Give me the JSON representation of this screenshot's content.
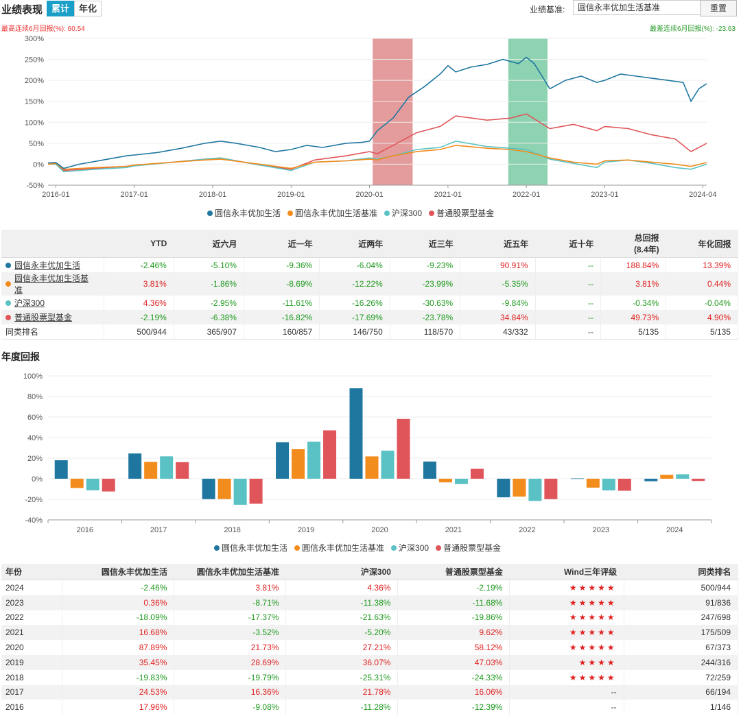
{
  "header": {
    "title": "业绩表现",
    "tab_cum": "累计",
    "tab_ann": "年化",
    "bench_label": "业绩基准:",
    "bench_value": "圆信永丰优加生活基准",
    "reset": "重置"
  },
  "extremes": {
    "max6m": "最高连续6月回报(%): 60.54",
    "min6m": "最差连续6月回报(%): -23.63"
  },
  "colors": {
    "fund": "#1f77a0",
    "bench": "#f28c1c",
    "hs300": "#5ac2c4",
    "peer": "#e0555a",
    "up": "#e02020",
    "down": "#1f9a1f",
    "shade_red": "#d97070",
    "shade_green": "#5cc090"
  },
  "chart_data": [
    {
      "type": "line",
      "title": "",
      "xlabel": "",
      "ylabel": "",
      "y_ticks": [
        "300%",
        "250%",
        "200%",
        "150%",
        "100%",
        "50%",
        "0%",
        "-50%"
      ],
      "x_ticks": [
        "2016-01",
        "2017-01",
        "2018-01",
        "2019-01",
        "2020-01",
        "2021-01",
        "2022-01",
        "2023-01",
        "2024-04"
      ],
      "ylim": [
        -50,
        300
      ],
      "xlim": [
        2015.9,
        2024.3
      ],
      "shaded": [
        {
          "from": 2020.04,
          "to": 2020.55,
          "color": "red"
        },
        {
          "from": 2021.77,
          "to": 2022.27,
          "color": "green"
        }
      ],
      "legend": [
        "圆信永丰优加生活",
        "圆信永丰优加生活基准",
        "沪深300",
        "普通股票型基金"
      ],
      "series": [
        {
          "name": "圆信永丰优加生活",
          "x": [
            2015.9,
            2016.0,
            2016.1,
            2016.3,
            2016.6,
            2016.9,
            2017.0,
            2017.3,
            2017.6,
            2017.9,
            2018.1,
            2018.3,
            2018.6,
            2018.8,
            2019.0,
            2019.2,
            2019.4,
            2019.7,
            2019.9,
            2020.0,
            2020.1,
            2020.3,
            2020.5,
            2020.7,
            2020.9,
            2021.0,
            2021.1,
            2021.3,
            2021.5,
            2021.7,
            2021.9,
            2022.0,
            2022.1,
            2022.2,
            2022.3,
            2022.5,
            2022.7,
            2022.9,
            2023.0,
            2023.2,
            2023.4,
            2023.6,
            2023.8,
            2024.0,
            2024.1,
            2024.2,
            2024.3
          ],
          "y": [
            3,
            4,
            -10,
            0,
            10,
            20,
            22,
            28,
            38,
            50,
            55,
            50,
            40,
            30,
            35,
            45,
            40,
            50,
            52,
            55,
            80,
            110,
            160,
            185,
            215,
            235,
            220,
            232,
            238,
            250,
            240,
            255,
            240,
            210,
            180,
            200,
            210,
            195,
            200,
            215,
            210,
            205,
            200,
            195,
            150,
            180,
            192
          ]
        },
        {
          "name": "圆信永丰优加生活基准",
          "x": [
            2015.9,
            2016.0,
            2016.1,
            2016.5,
            2016.9,
            2017.0,
            2017.5,
            2017.9,
            2018.1,
            2018.6,
            2019.0,
            2019.3,
            2019.7,
            2020.0,
            2020.1,
            2020.3,
            2020.6,
            2020.9,
            2021.1,
            2021.5,
            2021.8,
            2022.0,
            2022.3,
            2022.6,
            2022.9,
            2023.0,
            2023.3,
            2023.6,
            2023.9,
            2024.1,
            2024.3
          ],
          "y": [
            0,
            2,
            -12,
            -8,
            -5,
            -2,
            5,
            10,
            12,
            0,
            -10,
            5,
            8,
            12,
            10,
            20,
            30,
            35,
            45,
            38,
            35,
            30,
            15,
            5,
            0,
            8,
            10,
            5,
            0,
            -5,
            4
          ]
        },
        {
          "name": "沪深300",
          "x": [
            2015.9,
            2016.0,
            2016.1,
            2016.5,
            2016.9,
            2017.0,
            2017.5,
            2017.9,
            2018.1,
            2018.6,
            2019.0,
            2019.3,
            2019.7,
            2020.0,
            2020.1,
            2020.3,
            2020.6,
            2020.9,
            2021.1,
            2021.5,
            2021.8,
            2022.0,
            2022.3,
            2022.6,
            2022.9,
            2023.0,
            2023.3,
            2023.6,
            2023.9,
            2024.1,
            2024.3
          ],
          "y": [
            0,
            0,
            -18,
            -12,
            -8,
            -4,
            5,
            12,
            15,
            -2,
            -15,
            5,
            8,
            15,
            12,
            20,
            35,
            40,
            55,
            42,
            38,
            35,
            12,
            2,
            -8,
            5,
            10,
            2,
            -8,
            -12,
            0
          ]
        },
        {
          "name": "普通股票型基金",
          "x": [
            2015.9,
            2016.0,
            2016.1,
            2016.5,
            2016.9,
            2017.0,
            2017.5,
            2017.9,
            2018.1,
            2018.6,
            2019.0,
            2019.3,
            2019.7,
            2020.0,
            2020.1,
            2020.3,
            2020.6,
            2020.9,
            2021.1,
            2021.5,
            2021.8,
            2022.0,
            2022.3,
            2022.6,
            2022.9,
            2023.0,
            2023.3,
            2023.6,
            2023.9,
            2024.1,
            2024.3
          ],
          "y": [
            0,
            2,
            -15,
            -10,
            -5,
            -3,
            5,
            12,
            15,
            -2,
            -12,
            10,
            20,
            30,
            25,
            45,
            75,
            90,
            115,
            105,
            110,
            120,
            85,
            95,
            80,
            90,
            85,
            70,
            60,
            30,
            50
          ]
        }
      ]
    },
    {
      "type": "bar",
      "title": "年度回报",
      "xlabel": "",
      "ylabel": "",
      "categories": [
        "2016",
        "2017",
        "2018",
        "2019",
        "2020",
        "2021",
        "2022",
        "2023",
        "2024"
      ],
      "y_ticks": [
        "100%",
        "80%",
        "60%",
        "40%",
        "20%",
        "0%",
        "-20%",
        "-40%"
      ],
      "ylim": [
        -40,
        100
      ],
      "legend": [
        "圆信永丰优加生活",
        "圆信永丰优加生活基准",
        "沪深300",
        "普通股票型基金"
      ],
      "series": [
        {
          "name": "圆信永丰优加生活",
          "values": [
            17.96,
            24.53,
            -19.83,
            35.45,
            87.89,
            16.68,
            -18.09,
            0.36,
            -2.46
          ]
        },
        {
          "name": "圆信永丰优加生活基准",
          "values": [
            -9.08,
            16.36,
            -19.79,
            28.69,
            21.73,
            -3.52,
            -17.37,
            -8.71,
            3.81
          ]
        },
        {
          "name": "沪深300",
          "values": [
            -11.28,
            21.78,
            -25.31,
            36.07,
            27.21,
            -5.2,
            -21.63,
            -11.38,
            4.36
          ]
        },
        {
          "name": "普通股票型基金",
          "values": [
            -12.39,
            16.06,
            -24.33,
            47.03,
            58.12,
            9.62,
            -19.86,
            -11.68,
            -2.19
          ]
        }
      ]
    }
  ],
  "perf_table": {
    "headers": [
      "",
      "YTD",
      "近六月",
      "近一年",
      "近两年",
      "近三年",
      "近五年",
      "近十年",
      "总回报",
      "年化回报"
    ],
    "total_sub": "(8.4年)",
    "rows": [
      {
        "name": "圆信永丰优加生活",
        "cells": [
          "-2.46%",
          "-5.10%",
          "-9.36%",
          "-6.04%",
          "-9.23%",
          "90.91%",
          "--",
          "188.84%",
          "13.39%"
        ]
      },
      {
        "name": "圆信永丰优加生活基准",
        "cells": [
          "3.81%",
          "-1.86%",
          "-8.69%",
          "-12.22%",
          "-23.99%",
          "-5.35%",
          "--",
          "3.81%",
          "0.44%"
        ]
      },
      {
        "name": "沪深300",
        "cells": [
          "4.36%",
          "-2.95%",
          "-11.61%",
          "-16.26%",
          "-30.63%",
          "-9.84%",
          "--",
          "-0.34%",
          "-0.04%"
        ]
      },
      {
        "name": "普通股票型基金",
        "cells": [
          "-2.19%",
          "-6.38%",
          "-16.82%",
          "-17.69%",
          "-23.78%",
          "34.84%",
          "--",
          "49.73%",
          "4.90%"
        ]
      },
      {
        "name": "同类排名",
        "cells": [
          "500/944",
          "365/907",
          "160/857",
          "146/750",
          "118/570",
          "43/332",
          "--",
          "5/135",
          "5/135"
        ]
      }
    ]
  },
  "section2_title": "年度回报",
  "yearly_table": {
    "headers": [
      "年份",
      "圆信永丰优加生活",
      "圆信永丰优加生活基准",
      "沪深300",
      "普通股票型基金",
      "Wind三年评级",
      "同类排名"
    ],
    "rows": [
      {
        "year": "2024",
        "cells": [
          "-2.46%",
          "3.81%",
          "4.36%",
          "-2.19%"
        ],
        "rating": "★★★★★",
        "rank": "500/944"
      },
      {
        "year": "2023",
        "cells": [
          "0.36%",
          "-8.71%",
          "-11.38%",
          "-11.68%"
        ],
        "rating": "★★★★★",
        "rank": "91/836"
      },
      {
        "year": "2022",
        "cells": [
          "-18.09%",
          "-17.37%",
          "-21.63%",
          "-19.86%"
        ],
        "rating": "★★★★★",
        "rank": "247/698"
      },
      {
        "year": "2021",
        "cells": [
          "16.68%",
          "-3.52%",
          "-5.20%",
          "9.62%"
        ],
        "rating": "★★★★★",
        "rank": "175/509"
      },
      {
        "year": "2020",
        "cells": [
          "87.89%",
          "21.73%",
          "27.21%",
          "58.12%"
        ],
        "rating": "★★★★★",
        "rank": "67/373"
      },
      {
        "year": "2019",
        "cells": [
          "35.45%",
          "28.69%",
          "36.07%",
          "47.03%"
        ],
        "rating": "★★★★",
        "rank": "244/316"
      },
      {
        "year": "2018",
        "cells": [
          "-19.83%",
          "-19.79%",
          "-25.31%",
          "-24.33%"
        ],
        "rating": "★★★★★",
        "rank": "72/259"
      },
      {
        "year": "2017",
        "cells": [
          "24.53%",
          "16.36%",
          "21.78%",
          "16.06%"
        ],
        "rating": "--",
        "rank": "66/194"
      },
      {
        "year": "2016",
        "cells": [
          "17.96%",
          "-9.08%",
          "-11.28%",
          "-12.39%"
        ],
        "rating": "--",
        "rank": "1/146"
      }
    ]
  }
}
